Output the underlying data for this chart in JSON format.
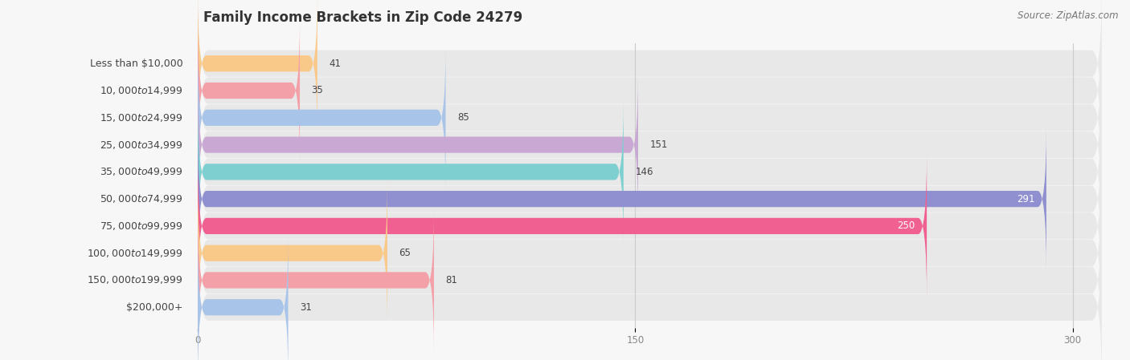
{
  "title": "Family Income Brackets in Zip Code 24279",
  "source": "Source: ZipAtlas.com",
  "categories": [
    "Less than $10,000",
    "$10,000 to $14,999",
    "$15,000 to $24,999",
    "$25,000 to $34,999",
    "$35,000 to $49,999",
    "$50,000 to $74,999",
    "$75,000 to $99,999",
    "$100,000 to $149,999",
    "$150,000 to $199,999",
    "$200,000+"
  ],
  "values": [
    41,
    35,
    85,
    151,
    146,
    291,
    250,
    65,
    81,
    31
  ],
  "colors": [
    "#f9c98a",
    "#f4a0a8",
    "#a8c4e8",
    "#c9a8d4",
    "#7ecfcf",
    "#9090d0",
    "#f06090",
    "#f9c98a",
    "#f4a0a8",
    "#a8c4e8"
  ],
  "xlim": [
    0,
    310
  ],
  "xticks": [
    0,
    150,
    300
  ],
  "background_color": "#f7f7f7",
  "bar_bg_color": "#e8e8e8",
  "title_fontsize": 12,
  "label_fontsize": 9,
  "value_fontsize": 8.5,
  "source_fontsize": 8.5,
  "title_color": "#333333",
  "label_color": "#444444",
  "value_color_dark": "#444444",
  "value_color_light": "#ffffff",
  "grid_color": "#cccccc",
  "tick_color": "#888888"
}
